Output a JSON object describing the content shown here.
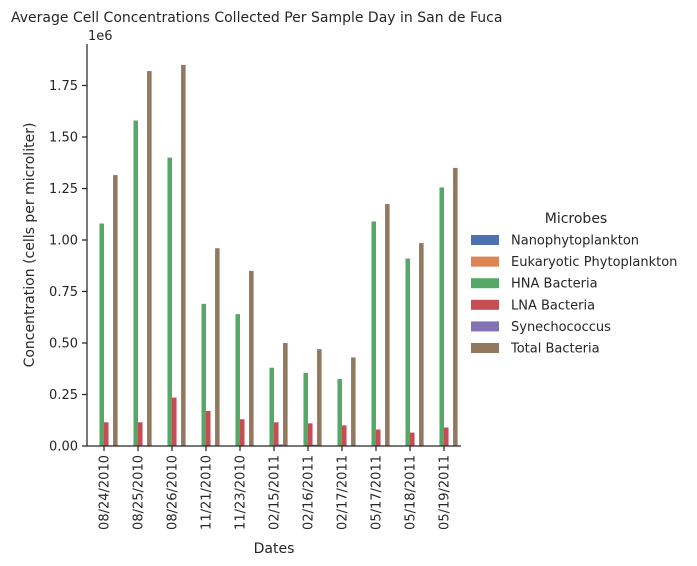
{
  "chart_data": {
    "type": "bar",
    "title": "Average Cell Concentrations Collected Per Sample Day in San de Fuca",
    "xlabel": "Dates",
    "ylabel": "Concentration (cells per microliter)",
    "y_exponent": "1e6",
    "ylim": [
      0,
      1950000
    ],
    "yticks": [
      0,
      250000,
      500000,
      750000,
      1000000,
      1250000,
      1500000,
      1750000
    ],
    "ytick_labels": [
      "0.00",
      "0.25",
      "0.50",
      "0.75",
      "1.00",
      "1.25",
      "1.50",
      "1.75"
    ],
    "categories": [
      "08/24/2010",
      "08/25/2010",
      "08/26/2010",
      "11/21/2010",
      "11/23/2010",
      "02/15/2011",
      "02/16/2011",
      "02/17/2011",
      "05/17/2011",
      "05/18/2011",
      "05/19/2011"
    ],
    "legend_title": "Microbes",
    "legend_position": "right",
    "grid": false,
    "series": [
      {
        "name": "Nanophytoplankton",
        "color": "#4c72b0",
        "values": [
          1500,
          1500,
          1800,
          1200,
          1000,
          1500,
          1700,
          1500,
          1500,
          1200,
          1500
        ]
      },
      {
        "name": "Eukaryotic Phytoplankton",
        "color": "#dd8452",
        "values": [
          300,
          300,
          300,
          300,
          300,
          300,
          300,
          300,
          300,
          300,
          300
        ]
      },
      {
        "name": "HNA Bacteria",
        "color": "#55a868",
        "values": [
          1080000,
          1580000,
          1400000,
          690000,
          640000,
          380000,
          355000,
          325000,
          1090000,
          910000,
          1255000
        ]
      },
      {
        "name": "LNA Bacteria",
        "color": "#c44e52",
        "values": [
          115000,
          115000,
          235000,
          170000,
          130000,
          115000,
          110000,
          100000,
          80000,
          65000,
          90000
        ]
      },
      {
        "name": "Synechococcus",
        "color": "#8172b3",
        "values": [
          2000,
          2000,
          2500,
          2500,
          2500,
          8000,
          6000,
          2500,
          2000,
          1500,
          2000
        ]
      },
      {
        "name": "Total Bacteria",
        "color": "#937860",
        "values": [
          1315000,
          1820000,
          1850000,
          960000,
          850000,
          500000,
          470000,
          430000,
          1175000,
          985000,
          1350000
        ]
      }
    ]
  }
}
